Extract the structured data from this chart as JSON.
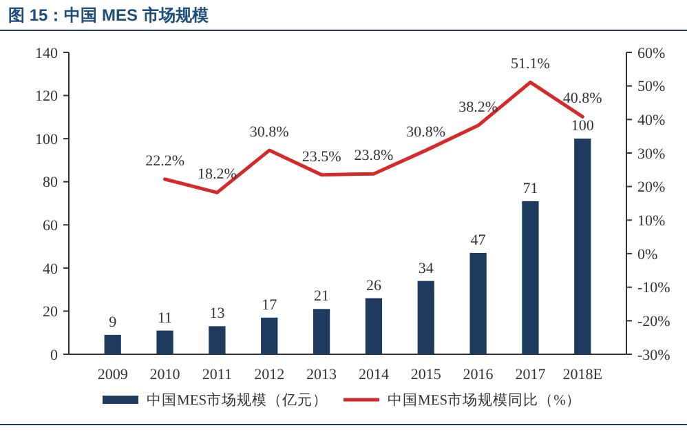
{
  "chart_data": {
    "type": "bar",
    "title": "图 15：中国 MES 市场规模",
    "categories": [
      "2009",
      "2010",
      "2011",
      "2012",
      "2013",
      "2014",
      "2015",
      "2016",
      "2017",
      "2018E"
    ],
    "series": [
      {
        "name": "中国MES市场规模（亿元）",
        "color": "#1f3a5f",
        "values": [
          9,
          11,
          13,
          17,
          21,
          26,
          34,
          47,
          71,
          100
        ],
        "value_labels": [
          "9",
          "11",
          "13",
          "17",
          "21",
          "26",
          "34",
          "47",
          "71",
          "100"
        ]
      },
      {
        "name": "中国MES市场规模同比（%）",
        "type": "line",
        "axis": "y2",
        "color": "#d42a2a",
        "values": [
          null,
          22.2,
          18.2,
          30.8,
          23.5,
          23.8,
          30.8,
          38.2,
          51.1,
          40.8
        ],
        "value_labels": [
          null,
          "22.2%",
          "18.2%",
          "30.8%",
          "23.5%",
          "23.8%",
          "30.8%",
          "38.2%",
          "51.1%",
          "40.8%"
        ]
      }
    ],
    "ylim": [
      0,
      140
    ],
    "yticks": [
      0,
      20,
      40,
      60,
      80,
      100,
      120,
      140
    ],
    "y2lim": [
      -30,
      60
    ],
    "y2ticks": [
      {
        "value": -30,
        "label": "-30%"
      },
      {
        "value": -20,
        "label": "-20%"
      },
      {
        "value": -10,
        "label": "-10%"
      },
      {
        "value": 0,
        "label": "0%"
      },
      {
        "value": 10,
        "label": "10%"
      },
      {
        "value": 20,
        "label": "20%"
      },
      {
        "value": 30,
        "label": "30%"
      },
      {
        "value": 40,
        "label": "40%"
      },
      {
        "value": 50,
        "label": "50%"
      },
      {
        "value": 60,
        "label": "60%"
      }
    ],
    "legend": "bottom",
    "marker": "none"
  }
}
